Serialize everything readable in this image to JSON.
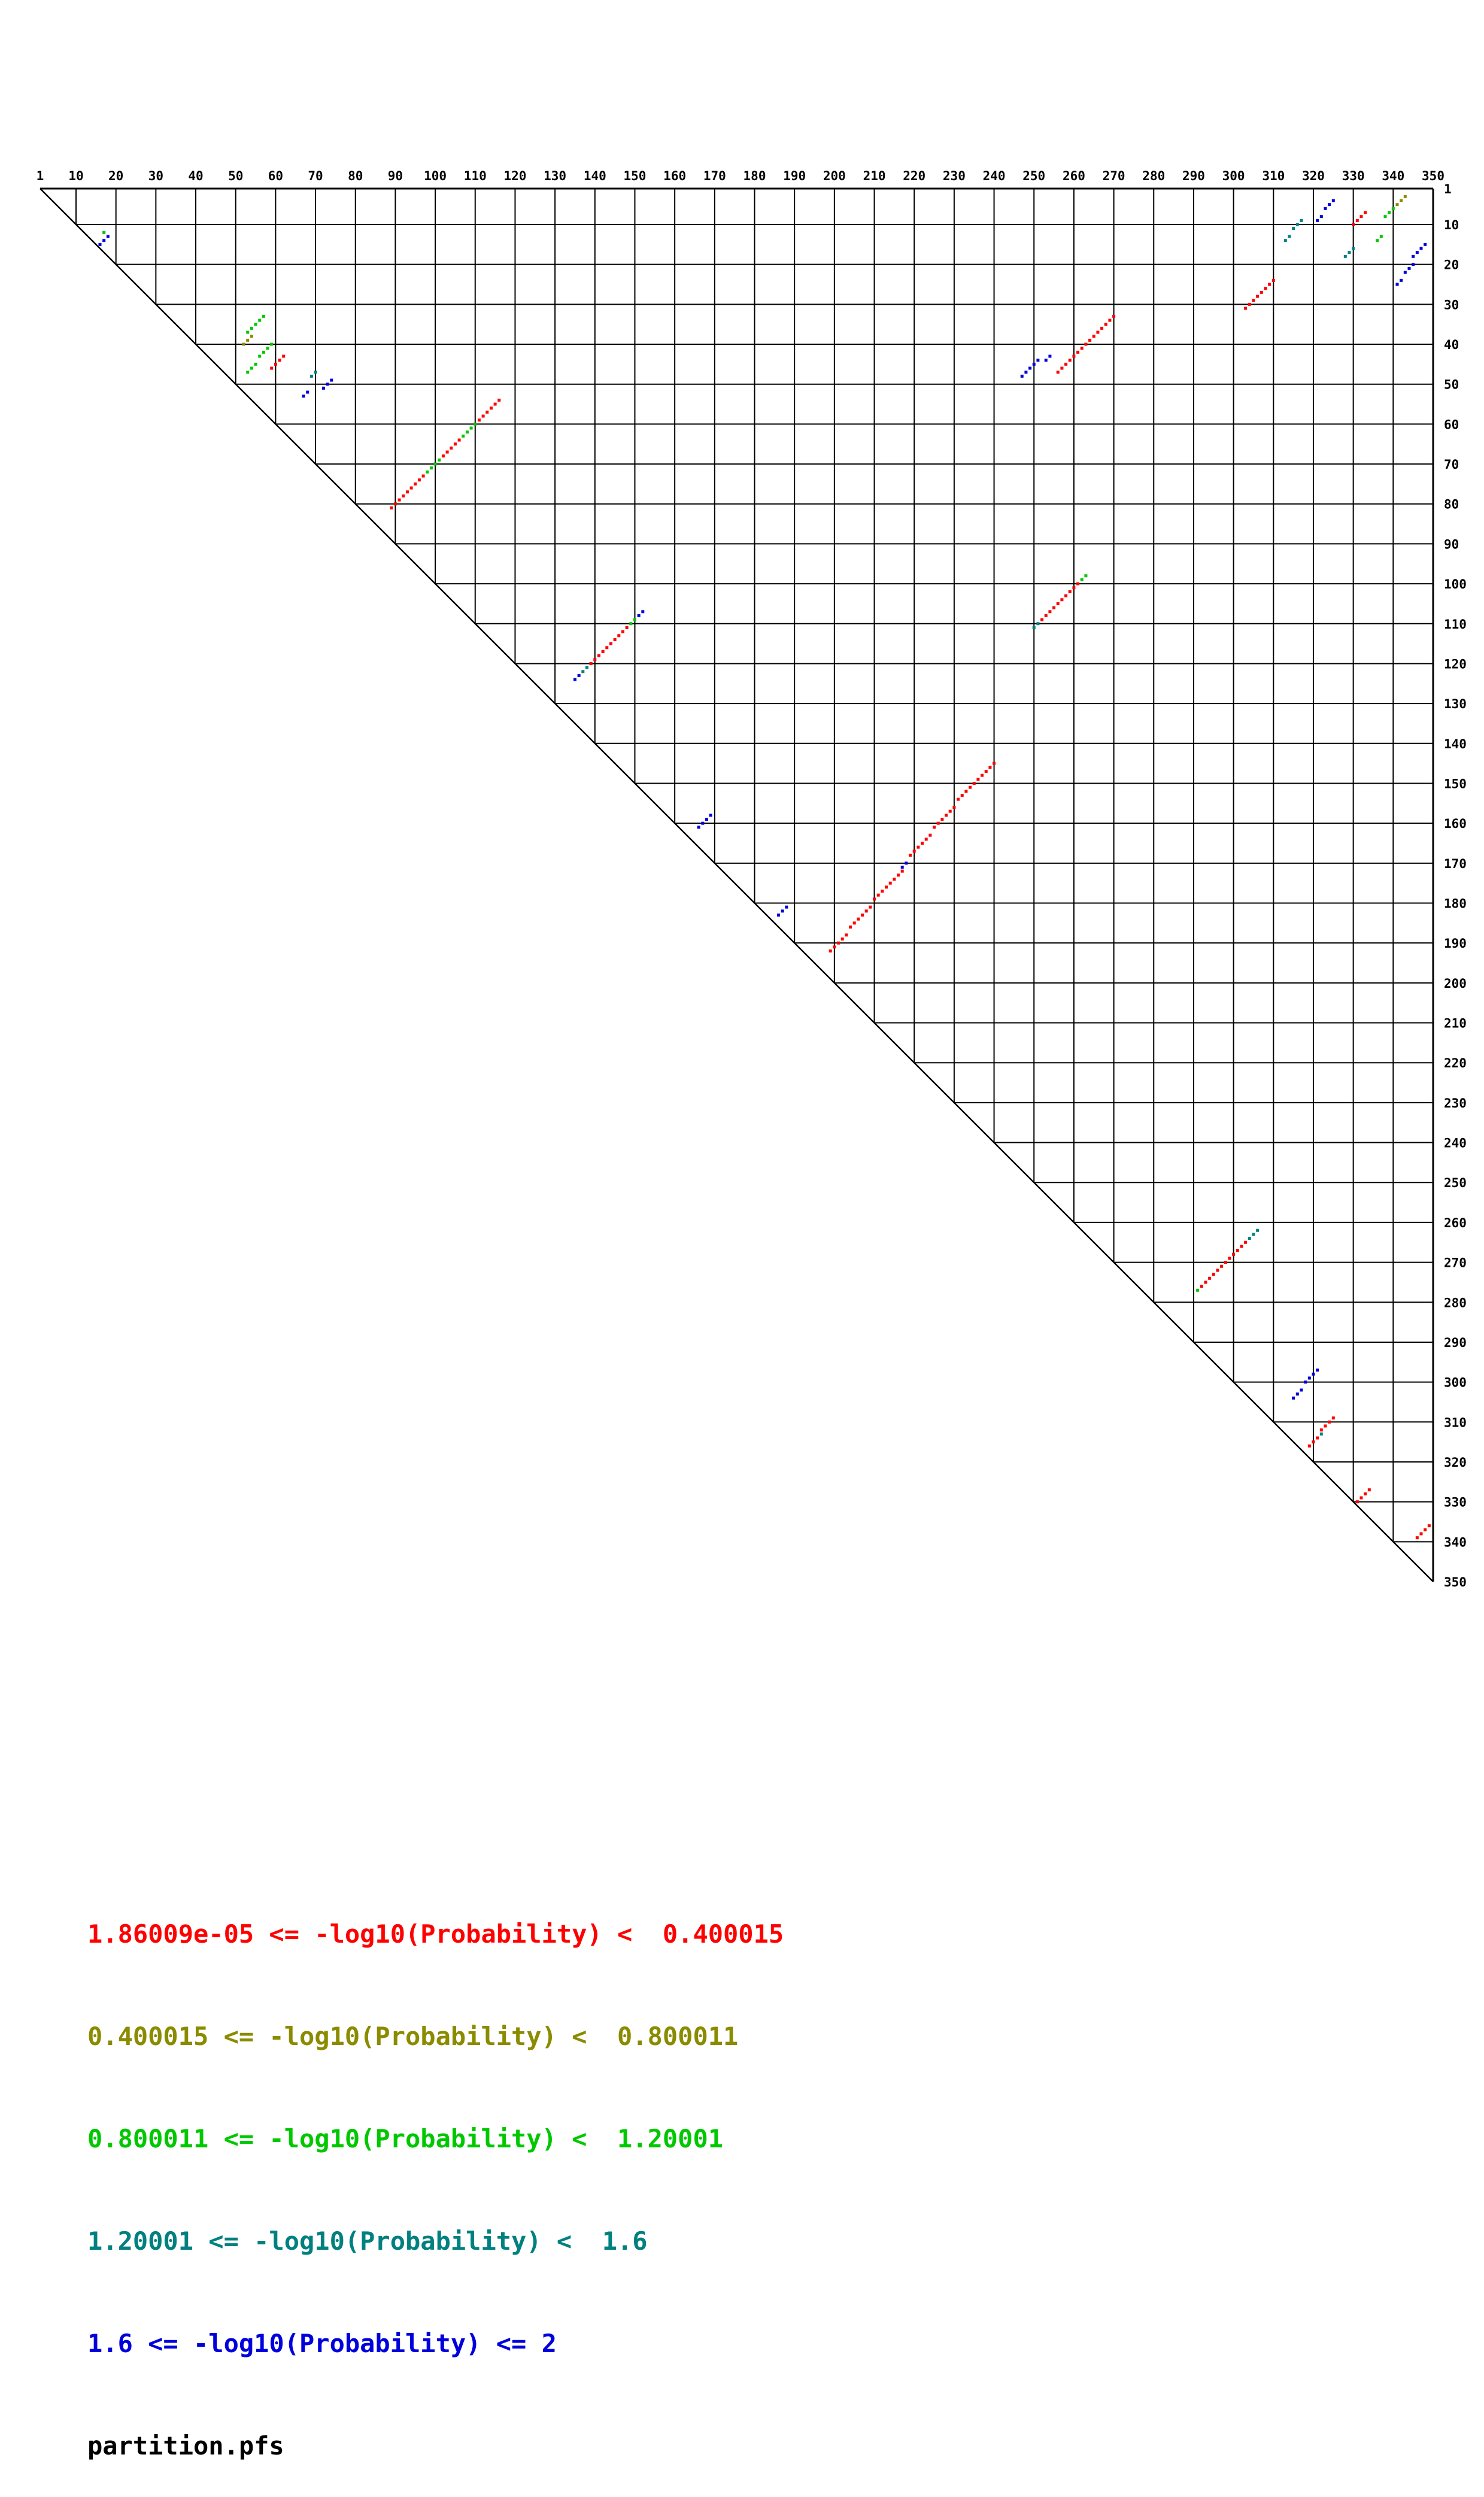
{
  "legend": {
    "lines": [
      {
        "text": "1.86009e-05 <= -log10(Probability) <  0.400015",
        "color": "#ff0000"
      },
      {
        "text": "0.400015 <= -log10(Probability) <  0.800011",
        "color": "#8b8b00"
      },
      {
        "text": "0.800011 <= -log10(Probability) <  1.20001",
        "color": "#00c800"
      },
      {
        "text": "1.20001 <= -log10(Probability) <  1.6",
        "color": "#008080"
      },
      {
        "text": "1.6 <= -log10(Probability) <= 2",
        "color": "#0000dc"
      }
    ],
    "file_label": {
      "text": "partition.pfs",
      "color": "#000000"
    }
  },
  "chart_data": {
    "type": "scatter",
    "subtype": "triangular-base-pair-probability-dot-plot",
    "title": "",
    "xlabel": "",
    "ylabel": "",
    "grid": true,
    "legend_position": "bottom-left",
    "axis": {
      "min": 1,
      "max": 350,
      "tick_step": 10,
      "ticks": [
        1,
        10,
        20,
        30,
        40,
        50,
        60,
        70,
        80,
        90,
        100,
        110,
        120,
        130,
        140,
        150,
        160,
        170,
        180,
        190,
        200,
        210,
        220,
        230,
        240,
        250,
        260,
        270,
        280,
        290,
        300,
        310,
        320,
        330,
        340,
        350
      ]
    },
    "classes": [
      {
        "id": "c1",
        "color": "#ff0000",
        "label": "1.86009e-05 <= -log10(Probability) <  0.400015"
      },
      {
        "id": "c2",
        "color": "#8b8b00",
        "label": "0.400015 <= -log10(Probability) <  0.800011"
      },
      {
        "id": "c3",
        "color": "#00c800",
        "label": "0.800011 <= -log10(Probability) <  1.20001"
      },
      {
        "id": "c4",
        "color": "#008080",
        "label": "1.20001 <= -log10(Probability) <  1.6"
      },
      {
        "id": "c5",
        "color": "#0000dc",
        "label": "1.6 <= -log10(Probability) <= 2"
      }
    ],
    "runs": [
      {
        "cls": "c3",
        "row": 12,
        "col": 17,
        "len": 1,
        "dir": "anti"
      },
      {
        "cls": "c5",
        "row": 13,
        "col": 18,
        "len": 3,
        "dir": "anti"
      },
      {
        "cls": "c5",
        "row": 4,
        "col": 325,
        "len": 3,
        "dir": "anti"
      },
      {
        "cls": "c5",
        "row": 8,
        "col": 322,
        "len": 2,
        "dir": "anti"
      },
      {
        "cls": "c1",
        "row": 7,
        "col": 333,
        "len": 4,
        "dir": "anti"
      },
      {
        "cls": "c2",
        "row": 3,
        "col": 343,
        "len": 3,
        "dir": "anti"
      },
      {
        "cls": "c3",
        "row": 6,
        "col": 340,
        "len": 3,
        "dir": "anti"
      },
      {
        "cls": "c4",
        "row": 9,
        "col": 317,
        "len": 3,
        "dir": "anti"
      },
      {
        "cls": "c4",
        "row": 13,
        "col": 314,
        "len": 2,
        "dir": "anti"
      },
      {
        "cls": "c3",
        "row": 13,
        "col": 337,
        "len": 2,
        "dir": "anti"
      },
      {
        "cls": "c4",
        "row": 16,
        "col": 330,
        "len": 3,
        "dir": "anti"
      },
      {
        "cls": "c5",
        "row": 15,
        "col": 348,
        "len": 4,
        "dir": "anti"
      },
      {
        "cls": "c5",
        "row": 20,
        "col": 345,
        "len": 3,
        "dir": "anti"
      },
      {
        "cls": "c5",
        "row": 24,
        "col": 342,
        "len": 2,
        "dir": "anti"
      },
      {
        "cls": "c1",
        "row": 24,
        "col": 310,
        "len": 8,
        "dir": "anti"
      },
      {
        "cls": "c3",
        "row": 33,
        "col": 57,
        "len": 5,
        "dir": "anti"
      },
      {
        "cls": "c2",
        "row": 38,
        "col": 54,
        "len": 3,
        "dir": "anti"
      },
      {
        "cls": "c3",
        "row": 40,
        "col": 59,
        "len": 4,
        "dir": "anti"
      },
      {
        "cls": "c1",
        "row": 43,
        "col": 62,
        "len": 4,
        "dir": "anti"
      },
      {
        "cls": "c3",
        "row": 45,
        "col": 55,
        "len": 3,
        "dir": "anti"
      },
      {
        "cls": "c4",
        "row": 47,
        "col": 70,
        "len": 2,
        "dir": "anti"
      },
      {
        "cls": "c5",
        "row": 49,
        "col": 74,
        "len": 3,
        "dir": "anti"
      },
      {
        "cls": "c5",
        "row": 52,
        "col": 68,
        "len": 2,
        "dir": "anti"
      },
      {
        "cls": "c1",
        "row": 33,
        "col": 270,
        "len": 15,
        "dir": "anti"
      },
      {
        "cls": "c5",
        "row": 43,
        "col": 254,
        "len": 2,
        "dir": "anti"
      },
      {
        "cls": "c5",
        "row": 44,
        "col": 251,
        "len": 3,
        "dir": "anti"
      },
      {
        "cls": "c5",
        "row": 47,
        "col": 248,
        "len": 2,
        "dir": "anti"
      },
      {
        "cls": "c1",
        "row": 54,
        "col": 116,
        "len": 6,
        "dir": "anti"
      },
      {
        "cls": "c3",
        "row": 60,
        "col": 110,
        "len": 4,
        "dir": "anti"
      },
      {
        "cls": "c1",
        "row": 64,
        "col": 106,
        "len": 5,
        "dir": "anti"
      },
      {
        "cls": "c3",
        "row": 69,
        "col": 101,
        "len": 4,
        "dir": "anti"
      },
      {
        "cls": "c1",
        "row": 73,
        "col": 97,
        "len": 9,
        "dir": "anti"
      },
      {
        "cls": "c3",
        "row": 98,
        "col": 263,
        "len": 2,
        "dir": "anti"
      },
      {
        "cls": "c1",
        "row": 100,
        "col": 261,
        "len": 10,
        "dir": "anti"
      },
      {
        "cls": "c4",
        "row": 110,
        "col": 251,
        "len": 2,
        "dir": "anti"
      },
      {
        "cls": "c5",
        "row": 107,
        "col": 152,
        "len": 2,
        "dir": "anti"
      },
      {
        "cls": "c3",
        "row": 109,
        "col": 150,
        "len": 2,
        "dir": "anti"
      },
      {
        "cls": "c1",
        "row": 111,
        "col": 148,
        "len": 10,
        "dir": "anti"
      },
      {
        "cls": "c4",
        "row": 121,
        "col": 138,
        "len": 2,
        "dir": "anti"
      },
      {
        "cls": "c5",
        "row": 123,
        "col": 136,
        "len": 2,
        "dir": "anti"
      },
      {
        "cls": "c5",
        "row": 158,
        "col": 169,
        "len": 4,
        "dir": "anti"
      },
      {
        "cls": "c1",
        "row": 145,
        "col": 240,
        "len": 10,
        "dir": "anti"
      },
      {
        "cls": "c1",
        "row": 156,
        "col": 230,
        "len": 6,
        "dir": "anti"
      },
      {
        "cls": "c1",
        "row": 163,
        "col": 224,
        "len": 6,
        "dir": "anti"
      },
      {
        "cls": "c5",
        "row": 170,
        "col": 218,
        "len": 2,
        "dir": "anti"
      },
      {
        "cls": "c1",
        "row": 172,
        "col": 217,
        "len": 8,
        "dir": "anti"
      },
      {
        "cls": "c1",
        "row": 181,
        "col": 209,
        "len": 6,
        "dir": "anti"
      },
      {
        "cls": "c5",
        "row": 181,
        "col": 188,
        "len": 3,
        "dir": "anti"
      },
      {
        "cls": "c1",
        "row": 188,
        "col": 203,
        "len": 5,
        "dir": "anti"
      },
      {
        "cls": "c4",
        "row": 262,
        "col": 306,
        "len": 3,
        "dir": "anti"
      },
      {
        "cls": "c1",
        "row": 265,
        "col": 303,
        "len": 12,
        "dir": "anti"
      },
      {
        "cls": "c3",
        "row": 277,
        "col": 291,
        "len": 1,
        "dir": "anti"
      },
      {
        "cls": "c5",
        "row": 297,
        "col": 321,
        "len": 4,
        "dir": "anti"
      },
      {
        "cls": "c5",
        "row": 302,
        "col": 317,
        "len": 3,
        "dir": "anti"
      },
      {
        "cls": "c1",
        "row": 309,
        "col": 325,
        "len": 4,
        "dir": "anti"
      },
      {
        "cls": "c4",
        "row": 313,
        "col": 322,
        "len": 1,
        "dir": "anti"
      },
      {
        "cls": "c1",
        "row": 314,
        "col": 321,
        "len": 3,
        "dir": "anti"
      },
      {
        "cls": "c1",
        "row": 327,
        "col": 334,
        "len": 4,
        "dir": "anti"
      },
      {
        "cls": "c1",
        "row": 336,
        "col": 349,
        "len": 4,
        "dir": "anti"
      }
    ],
    "source_label": "partition.pfs"
  }
}
